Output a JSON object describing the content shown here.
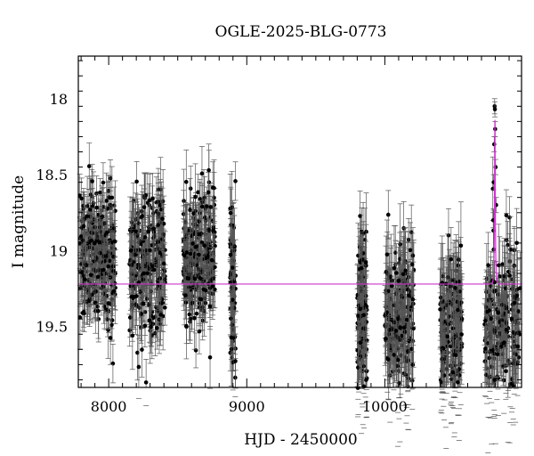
{
  "chart_data": {
    "type": "scatter",
    "title": "OGLE-2025-BLG-0773",
    "xlabel": "HJD - 2450000",
    "ylabel": "I magnitude",
    "xlim": [
      7780,
      10990
    ],
    "ylim": [
      19.9,
      17.72
    ],
    "y_inverted": true,
    "x_ticks": [
      8000,
      9000,
      10000
    ],
    "x_tick_labels": [
      "8000",
      "9000",
      "10000"
    ],
    "y_ticks": [
      18,
      18.5,
      19,
      19.5
    ],
    "y_tick_labels": [
      "18",
      "18.5",
      "19",
      "19.5"
    ],
    "grid": false,
    "point_color": "#000000",
    "model_color": "#cc33cc",
    "seasons": [
      {
        "start": 7790,
        "end": 8050,
        "mean_mag": 19.02,
        "sd_mag": 0.22,
        "err": 0.15,
        "n": 260
      },
      {
        "start": 8150,
        "end": 8410,
        "mean_mag": 19.1,
        "sd_mag": 0.22,
        "err": 0.16,
        "n": 240
      },
      {
        "start": 8540,
        "end": 8770,
        "mean_mag": 19.05,
        "sd_mag": 0.22,
        "err": 0.16,
        "n": 240
      },
      {
        "start": 8880,
        "end": 8920,
        "mean_mag": 19.25,
        "sd_mag": 0.28,
        "err": 0.18,
        "n": 60
      },
      {
        "start": 9800,
        "end": 9870,
        "mean_mag": 19.4,
        "sd_mag": 0.28,
        "err": 0.2,
        "n": 110
      },
      {
        "start": 10000,
        "end": 10210,
        "mean_mag": 19.45,
        "sd_mag": 0.28,
        "err": 0.22,
        "n": 180
      },
      {
        "start": 10400,
        "end": 10560,
        "mean_mag": 19.5,
        "sd_mag": 0.25,
        "err": 0.22,
        "n": 150
      },
      {
        "start": 10720,
        "end": 10980,
        "mean_mag": 19.45,
        "sd_mag": 0.27,
        "err": 0.2,
        "n": 200
      }
    ],
    "peak_points": [
      {
        "x": 10795,
        "y": 18.05
      },
      {
        "x": 10797,
        "y": 18.07
      },
      {
        "x": 10799,
        "y": 18.2
      },
      {
        "x": 10792,
        "y": 18.3
      },
      {
        "x": 10802,
        "y": 18.45
      },
      {
        "x": 10788,
        "y": 18.55
      },
      {
        "x": 10806,
        "y": 18.7
      },
      {
        "x": 10785,
        "y": 18.8
      }
    ],
    "model": {
      "baseline_mag": 19.22,
      "peak_mag": 18.14,
      "t0": 10797,
      "tE": 5
    }
  }
}
